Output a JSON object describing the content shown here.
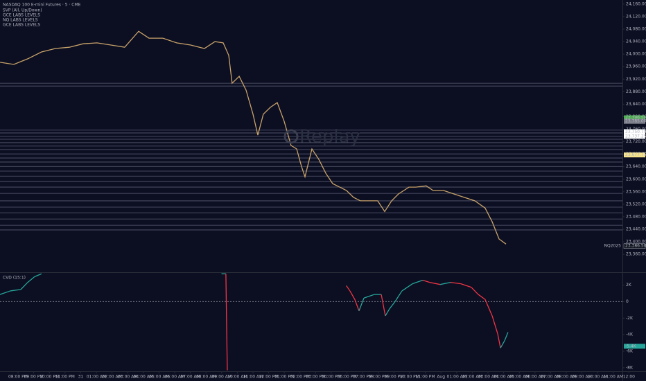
{
  "chart_data": [
    {
      "type": "line",
      "title": "NASDAQ 100 E-mini Futures · 5 · CME",
      "indicators": [
        "SVP (All, Up/Down)",
        "GCE LABS LEVELS",
        "NQ LABS LEVELS",
        "GCE LABS LEVELS"
      ],
      "watermark": "Replay",
      "xlim": [
        -1.15,
        40.09
      ],
      "ylim": [
        23305,
        24173
      ],
      "xticks": [
        {
          "value": 0,
          "label": "08:00 PM"
        },
        {
          "value": 1,
          "label": "09:00 PM"
        },
        {
          "value": 2,
          "label": "10:00 PM"
        },
        {
          "value": 3,
          "label": "11:00 PM"
        },
        {
          "value": 4,
          "label": "31"
        },
        {
          "value": 5,
          "label": "01:00 AM"
        },
        {
          "value": 6,
          "label": "02:00 AM"
        },
        {
          "value": 7,
          "label": "03:00 AM"
        },
        {
          "value": 8,
          "label": "04:00 AM"
        },
        {
          "value": 9,
          "label": "05:00 AM"
        },
        {
          "value": 10,
          "label": "06:00 AM"
        },
        {
          "value": 11,
          "label": "07:00 AM"
        },
        {
          "value": 12,
          "label": "08:00 AM"
        },
        {
          "value": 13,
          "label": "09:00 AM"
        },
        {
          "value": 14,
          "label": "10:00 AM"
        },
        {
          "value": 15,
          "label": "11:00 AM"
        },
        {
          "value": 16,
          "label": "12:00 PM"
        },
        {
          "value": 17,
          "label": "01:00 PM"
        },
        {
          "value": 18,
          "label": "02:00 PM"
        },
        {
          "value": 19,
          "label": "03:00 PM"
        },
        {
          "value": 20,
          "label": "04:00 PM"
        },
        {
          "value": 21,
          "label": "06:00 PM"
        },
        {
          "value": 22,
          "label": "07:00 PM"
        },
        {
          "value": 23,
          "label": "08:00 PM"
        },
        {
          "value": 24,
          "label": "09:00 PM"
        },
        {
          "value": 25,
          "label": "10:00 PM"
        },
        {
          "value": 26,
          "label": "11:00 PM"
        },
        {
          "value": 27,
          "label": "Aug"
        },
        {
          "value": 28,
          "label": "01:00 AM"
        },
        {
          "value": 29,
          "label": "02:00 AM"
        },
        {
          "value": 30,
          "label": "03:00 AM"
        },
        {
          "value": 31,
          "label": "04:00 AM"
        },
        {
          "value": 32,
          "label": "05:00 AM"
        },
        {
          "value": 33,
          "label": "06:00 AM"
        },
        {
          "value": 34,
          "label": "07:00 AM"
        },
        {
          "value": 35,
          "label": "08:00 AM"
        },
        {
          "value": 36,
          "label": "09:00 AM"
        },
        {
          "value": 37,
          "label": "10:00 AM"
        },
        {
          "value": 38,
          "label": "11:00 AM"
        },
        {
          "value": 39,
          "label": "12:00"
        }
      ],
      "yticks": [
        {
          "value": 23360,
          "label": "23,360.00"
        },
        {
          "value": 23400,
          "label": "23,400.00"
        },
        {
          "value": 23440,
          "label": "23,440.00"
        },
        {
          "value": 23480,
          "label": "23,480.00"
        },
        {
          "value": 23520,
          "label": "23,520.00"
        },
        {
          "value": 23560,
          "label": "23,560.00"
        },
        {
          "value": 23600,
          "label": "23,600.00"
        },
        {
          "value": 23640,
          "label": "23,640.00"
        },
        {
          "value": 23680,
          "label": "23,680.00"
        },
        {
          "value": 23720,
          "label": "23,720.00"
        },
        {
          "value": 23760,
          "label": "23,760.00"
        },
        {
          "value": 23800,
          "label": "23,800.00"
        },
        {
          "value": 23840,
          "label": "23,840.00"
        },
        {
          "value": 23880,
          "label": "23,880.00"
        },
        {
          "value": 23920,
          "label": "23,920.00"
        },
        {
          "value": 23960,
          "label": "23,960.00"
        },
        {
          "value": 24000,
          "label": "24,000.00"
        },
        {
          "value": 24040,
          "label": "24,040.00"
        },
        {
          "value": 24080,
          "label": "24,080.00"
        },
        {
          "value": 24120,
          "label": "24,120.00"
        },
        {
          "value": 24160,
          "label": "24,160.00"
        }
      ],
      "series": [
        {
          "color": "#c9a46a",
          "x": [
            -1.15,
            -0.27,
            0.62,
            1.5,
            2.39,
            3.27,
            4.16,
            5.04,
            5.93,
            6.81,
            7.7,
            8.36,
            9.25,
            10.13,
            11.02,
            11.9,
            12.57,
            13.1,
            13.45,
            13.67,
            14.12,
            14.56,
            15,
            15.31,
            15.66,
            16.11,
            16.55,
            16.99,
            17.43,
            17.79,
            18.1,
            18.32,
            18.76,
            19.2,
            19.65,
            20.09,
            20.53,
            20.97,
            21.42,
            21.86,
            22.3,
            22.96,
            23.41,
            23.85,
            24.29,
            24.96,
            25.4,
            26.06,
            26.5,
            27.17,
            27.83,
            28.5,
            29.16,
            29.82,
            30.27,
            30.71,
            31.15
          ],
          "values": [
            23974,
            23967,
            23985,
            24007,
            24018,
            24022,
            24033,
            24036,
            24029,
            24022,
            24073,
            24051,
            24051,
            24036,
            24029,
            24018,
            24040,
            24036,
            23996,
            23907,
            23929,
            23885,
            23808,
            23741,
            23808,
            23830,
            23845,
            23785,
            23708,
            23697,
            23641,
            23608,
            23697,
            23664,
            23619,
            23586,
            23575,
            23564,
            23542,
            23531,
            23531,
            23531,
            23497,
            23531,
            23553,
            23575,
            23575,
            23579,
            23564,
            23564,
            23553,
            23542,
            23531,
            23508,
            23464,
            23409,
            23393
          ]
        }
      ],
      "levels": [
        23907,
        23898,
        23757,
        23748,
        23737,
        23728,
        23717,
        23706,
        23695,
        23681,
        23668,
        23655,
        23641,
        23626,
        23610,
        23593,
        23575,
        23555,
        23531,
        23511,
        23493,
        23473,
        23453,
        23438
      ],
      "price_tags": [
        {
          "value": 23796.5,
          "label": "23,796.50",
          "color": "#4caf50"
        },
        {
          "value": 23785,
          "label": "23,785.00",
          "color": "#787b86"
        },
        {
          "value": 23752.5,
          "label": "23,752.50",
          "color": "#d1d4dc"
        },
        {
          "value": 23750.75,
          "label": "23,750.75",
          "color": "#ffffff"
        },
        {
          "value": 23737.25,
          "label": "23,737.25",
          "color": "#ffffff"
        },
        {
          "value": 23677.75,
          "label": "23,677.75",
          "color": "#f7e48a"
        },
        {
          "value": 23386.5,
          "label": "23,386.50",
          "color": "#131722"
        }
      ],
      "symbol_tag": "NQ2025"
    },
    {
      "type": "line",
      "title": "CVD (15:1)",
      "xlim": [
        -1.15,
        40.09
      ],
      "ylim": [
        -8345,
        3466
      ],
      "yticks": [
        {
          "value": 2000,
          "label": "2K"
        },
        0,
        {
          "value": -2000,
          "label": "-2K"
        },
        {
          "value": -4000,
          "label": "-4K"
        },
        {
          "value": -6000,
          "label": "-6K"
        },
        {
          "value": -8000,
          "label": "-8K"
        }
      ],
      "series": [
        {
          "up_color": "#26a69a",
          "down_color": "#f23645",
          "x": [
            -1.15,
            -0.49,
            0.18,
            0.62,
            1.06,
            1.5,
            null,
            13.01,
            13.27,
            13.36,
            null,
            20.97,
            21.19,
            21.5,
            21.77,
            22.08,
            22.74,
            23.19,
            23.45,
            23.72,
            24.07,
            24.51,
            25.18,
            25.84,
            26.28,
            26.95,
            27.61,
            28.27,
            28.94,
            29.38,
            29.82,
            30.27,
            30.62,
            30.8,
            31.06,
            31.28
          ],
          "values": [
            862,
            1293,
            1466,
            2328,
            3017,
            3362,
            null,
            3362,
            3362,
            -8300,
            null,
            1897,
            1293,
            259,
            -1121,
            431,
            862,
            862,
            -1724,
            -862,
            0,
            1293,
            2155,
            2586,
            2328,
            2069,
            2328,
            2155,
            1724,
            862,
            259,
            -1724,
            -3879,
            -5603,
            -4741,
            -3707
          ]
        }
      ],
      "price_tag": {
        "value": -5400,
        "label": "-5.4K",
        "color": "#26a69a"
      }
    }
  ]
}
